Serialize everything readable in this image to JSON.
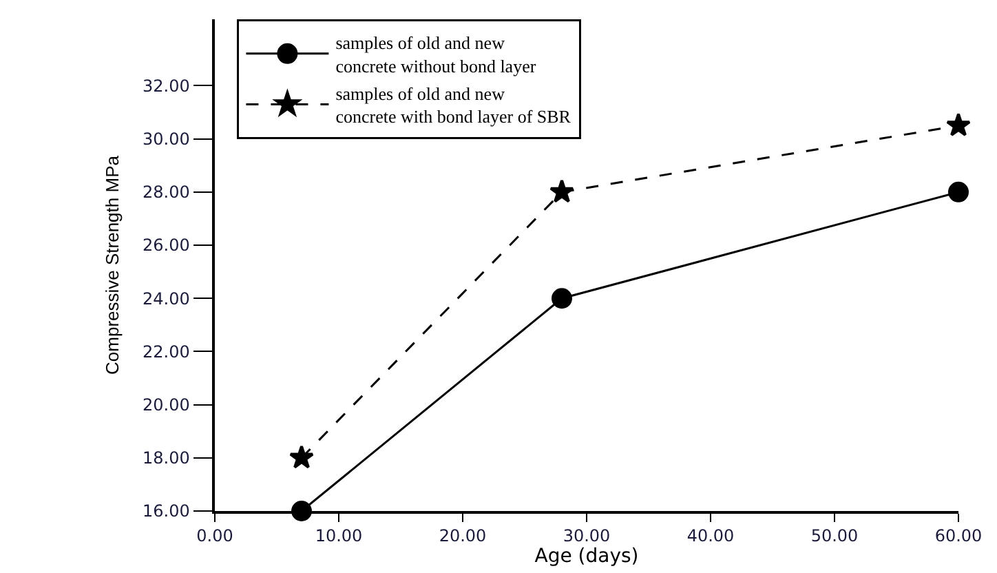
{
  "chart_data": {
    "type": "line",
    "xlabel": "Age (days)",
    "ylabel": "Compressive Strength MPa",
    "xlim": [
      0,
      60
    ],
    "xticks": [
      {
        "value": 0,
        "label": "0.00"
      },
      {
        "value": 10,
        "label": "10.00"
      },
      {
        "value": 20,
        "label": "20.00"
      },
      {
        "value": 30,
        "label": "30.00"
      },
      {
        "value": 40,
        "label": "40.00"
      },
      {
        "value": 50,
        "label": "50.00"
      },
      {
        "value": 60,
        "label": "60.00"
      }
    ],
    "ylim": [
      16,
      34.5
    ],
    "yticks": [
      {
        "value": 16,
        "label": "16.00"
      },
      {
        "value": 18,
        "label": "18.00"
      },
      {
        "value": 20,
        "label": "20.00"
      },
      {
        "value": 22,
        "label": "22.00"
      },
      {
        "value": 24,
        "label": "24.00"
      },
      {
        "value": 26,
        "label": "26.00"
      },
      {
        "value": 28,
        "label": "28.00"
      },
      {
        "value": 30,
        "label": "30.00"
      },
      {
        "value": 32,
        "label": "32.00"
      }
    ],
    "grid": false,
    "legend": "top left",
    "series": [
      {
        "name": "samples of old and new\nconcrete without bond layer",
        "color": "#000000",
        "x": [
          7,
          28,
          60
        ],
        "values": [
          16,
          24,
          28
        ],
        "marker": "circle",
        "line_style": "solid"
      },
      {
        "name": "samples of old and new\nconcrete with bond layer of SBR",
        "color": "#000000",
        "x": [
          7,
          28,
          60
        ],
        "values": [
          18,
          28,
          30.5
        ],
        "marker": "star",
        "line_style": "dashed"
      }
    ]
  }
}
